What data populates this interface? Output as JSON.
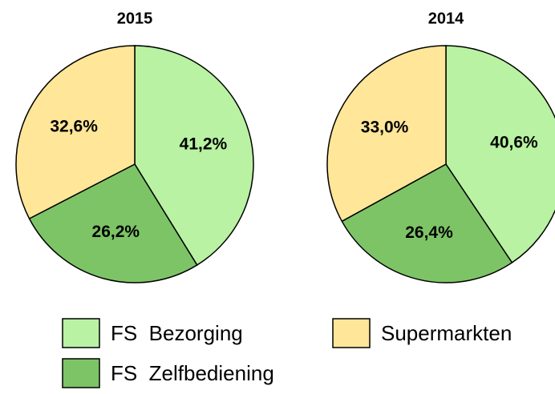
{
  "chart_data": [
    {
      "type": "pie",
      "title": "2015",
      "categories": [
        "FS  Bezorging",
        "FS  Zelfbediening",
        "Supermarkten"
      ],
      "values": [
        41.2,
        26.2,
        32.6
      ],
      "value_labels": [
        "41,2%",
        "26,2%",
        "32,6%"
      ],
      "colors": [
        "#b8f2a2",
        "#7dc466",
        "#ffe699"
      ]
    },
    {
      "type": "pie",
      "title": "2014",
      "categories": [
        "FS  Bezorging",
        "FS  Zelfbediening",
        "Supermarkten"
      ],
      "values": [
        40.6,
        26.4,
        33.0
      ],
      "value_labels": [
        "40,6%",
        "26,4%",
        "33,0%"
      ],
      "colors": [
        "#b8f2a2",
        "#7dc466",
        "#ffe699"
      ]
    }
  ]
}
